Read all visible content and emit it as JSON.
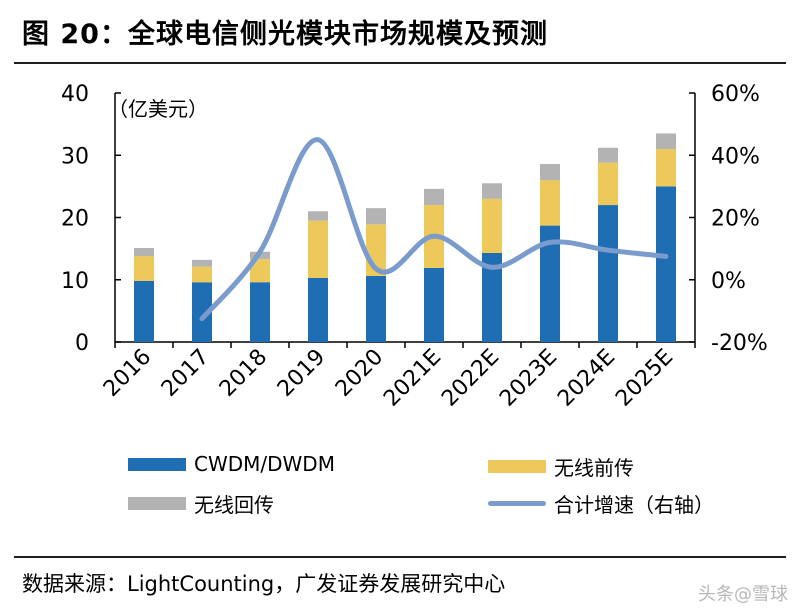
{
  "header": {
    "title": "图 20：全球电信侧光模块市场规模及预测"
  },
  "footer": {
    "source": "数据来源：LightCounting，广发证券发展研究中心",
    "watermark": "头条@雪球"
  },
  "colors": {
    "cwdm": "#1f6db2",
    "fronthaul": "#ecc95a",
    "backhaul": "#b3b3b3",
    "growth": "#7a9bcc"
  },
  "chart_data": {
    "type": "bar",
    "stacked": true,
    "title": "全球电信侧光模块市场规模及预测",
    "ylabel": "（亿美元）",
    "y2label": "",
    "categories": [
      "2016",
      "2017",
      "2018",
      "2019",
      "2020",
      "2021E",
      "2022E",
      "2023E",
      "2024E",
      "2025E"
    ],
    "ylim": [
      0,
      40
    ],
    "y_ticks": [
      "0",
      "10",
      "20",
      "30",
      "40"
    ],
    "y_tick_values": [
      0,
      10,
      20,
      30,
      40
    ],
    "y2lim": [
      -20,
      60
    ],
    "y2_ticks": [
      "-20%",
      "0%",
      "20%",
      "40%",
      "60%"
    ],
    "y2_tick_values": [
      -20,
      0,
      20,
      40,
      60
    ],
    "series": [
      {
        "name": "CWDM/DWDM",
        "axis": "left",
        "kind": "bar",
        "values": [
          9.8,
          9.6,
          9.6,
          10.3,
          10.6,
          11.9,
          14.3,
          18.7,
          22.0,
          25.0
        ]
      },
      {
        "name": "无线前传",
        "axis": "left",
        "kind": "bar",
        "values": [
          4.0,
          2.5,
          3.7,
          9.2,
          8.3,
          10.1,
          8.7,
          7.3,
          6.8,
          6.0
        ]
      },
      {
        "name": "无线回传",
        "axis": "left",
        "kind": "bar",
        "values": [
          1.3,
          1.1,
          1.2,
          1.5,
          2.6,
          2.6,
          2.5,
          2.6,
          2.4,
          2.5
        ]
      },
      {
        "name": "合计增速（右轴）",
        "axis": "right",
        "kind": "line",
        "values": [
          null,
          -12.5,
          9.0,
          45.0,
          3.5,
          14.0,
          4.0,
          12.0,
          9.5,
          7.5
        ]
      }
    ],
    "legend_position": "bottom"
  }
}
